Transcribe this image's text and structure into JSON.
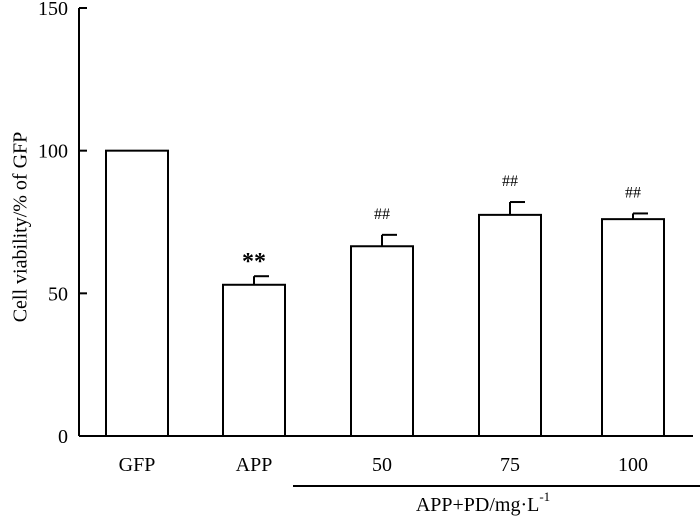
{
  "chart_data": {
    "type": "bar",
    "categories": [
      "GFP",
      "APP",
      "50",
      "75",
      "100"
    ],
    "values": [
      100,
      53,
      66.5,
      77.5,
      76
    ],
    "errors": [
      0,
      3,
      4,
      4.5,
      2
    ],
    "annotations": [
      "",
      "**",
      "##",
      "##",
      "##"
    ],
    "ylabel": "Cell viability/% of GFP",
    "ylim": [
      0,
      150
    ],
    "yticks": [
      0,
      50,
      100,
      150
    ],
    "ytick_labels": [
      "0",
      "50",
      "100",
      "150"
    ],
    "group": {
      "label": "APP+PD/mg·L",
      "superscript": "-1",
      "categories": [
        "50",
        "75",
        "100"
      ]
    },
    "grid": false,
    "legend": "none"
  }
}
